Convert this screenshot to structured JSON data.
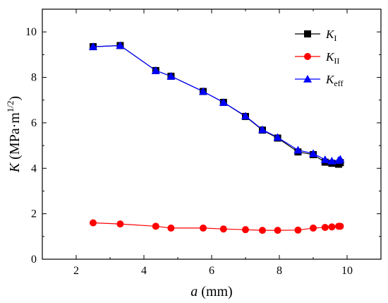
{
  "chart_data": {
    "type": "line",
    "xlabel_var": "a",
    "xlabel_unit": " (mm)",
    "ylabel_var": "K",
    "ylabel_unit": " (MPa·m",
    "ylabel_exp": "1/2",
    "ylabel_close": ")",
    "xlim": [
      1,
      11
    ],
    "ylim": [
      0,
      11
    ],
    "xticks": [
      2,
      4,
      6,
      8,
      10
    ],
    "yticks": [
      0,
      2,
      4,
      6,
      8,
      10
    ],
    "grid": false,
    "legend_position": "top-right",
    "x": [
      2.5,
      3.3,
      4.35,
      4.8,
      5.75,
      6.35,
      7.0,
      7.5,
      7.95,
      8.55,
      9.0,
      9.35,
      9.55,
      9.75,
      9.8
    ],
    "series": [
      {
        "name": "K",
        "name_sub": "I",
        "marker": "square",
        "color": "#000000",
        "values": [
          9.35,
          9.4,
          8.3,
          8.05,
          7.38,
          6.9,
          6.28,
          5.68,
          5.33,
          4.72,
          4.6,
          4.27,
          4.22,
          4.18,
          4.25
        ]
      },
      {
        "name": "K",
        "name_sub": "II",
        "marker": "circle",
        "color": "#ff0000",
        "values": [
          1.6,
          1.55,
          1.45,
          1.37,
          1.37,
          1.33,
          1.3,
          1.27,
          1.27,
          1.28,
          1.37,
          1.4,
          1.42,
          1.45,
          1.45
        ]
      },
      {
        "name": "K",
        "name_sub": "eff",
        "marker": "triangle",
        "color": "#0000ff",
        "values": [
          9.35,
          9.4,
          8.3,
          8.05,
          7.38,
          6.9,
          6.3,
          5.7,
          5.36,
          4.8,
          4.65,
          4.38,
          4.32,
          4.35,
          4.4
        ]
      }
    ]
  }
}
